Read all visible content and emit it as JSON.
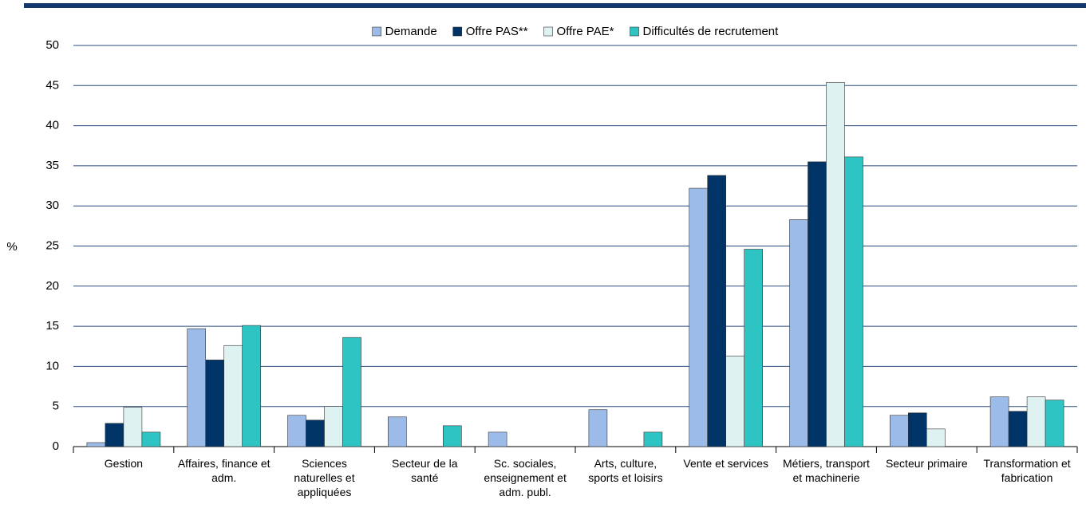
{
  "chart_data": {
    "type": "bar",
    "ylabel": "%",
    "categories": [
      "Gestion",
      "Affaires, finance et adm.",
      "Sciences naturelles et appliquées",
      "Secteur de la santé",
      "Sc. sociales, enseignement et adm. publ.",
      "Arts, culture, sports et loisirs",
      "Vente et services",
      "Métiers, transport et machinerie",
      "Secteur primaire",
      "Transformation et fabrication"
    ],
    "series": [
      {
        "name": "Demande",
        "color": "#9dbbe8",
        "values": [
          0.5,
          14.7,
          3.9,
          3.7,
          1.8,
          4.6,
          32.2,
          28.3,
          3.9,
          6.2
        ]
      },
      {
        "name": "Offre PAS**",
        "color": "#003366",
        "values": [
          2.9,
          10.8,
          3.3,
          0,
          0,
          0,
          33.8,
          35.5,
          4.2,
          4.4
        ]
      },
      {
        "name": "Offre PAE*",
        "color": "#dff2f2",
        "values": [
          4.9,
          12.6,
          5.0,
          0,
          0,
          0,
          11.3,
          45.4,
          2.2,
          6.2
        ]
      },
      {
        "name": "Difficultés de recrutement",
        "color": "#2ec4c4",
        "values": [
          1.8,
          15.1,
          13.6,
          2.6,
          0,
          1.8,
          24.6,
          36.1,
          0,
          5.8
        ]
      }
    ],
    "ylim": [
      0,
      50
    ],
    "yticks": [
      0,
      5,
      10,
      15,
      20,
      25,
      30,
      35,
      40,
      45,
      50
    ],
    "grid": true,
    "legend": "top"
  }
}
